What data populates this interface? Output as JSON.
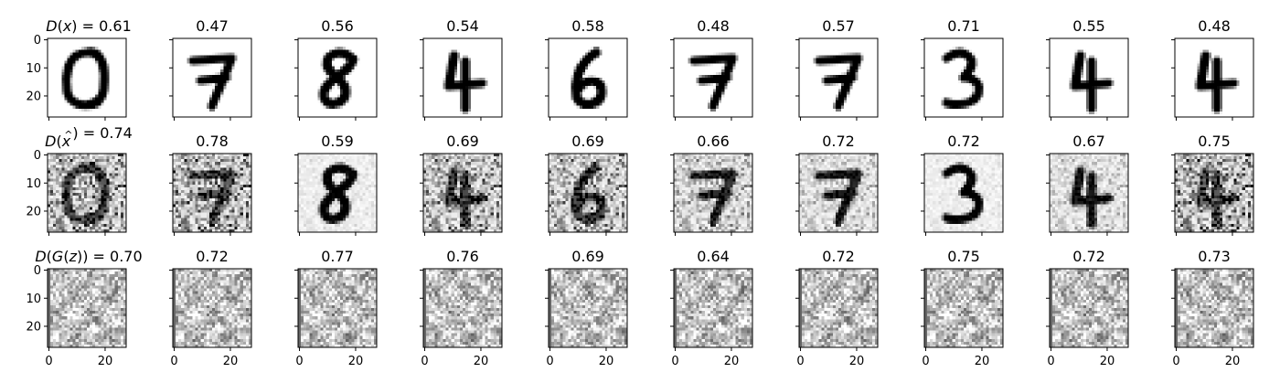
{
  "chart_data": {
    "type": "image-grid",
    "image_size": 28,
    "x_ticks": [
      0,
      20
    ],
    "y_ticks": [
      0,
      10,
      20
    ],
    "rows": [
      {
        "label": "D(x)",
        "label_parts": {
          "main": "D(x)",
          "prefix": "D(",
          "var": "x",
          "hat": "",
          "suffix": ")"
        },
        "kind": "real",
        "scores": [
          "0.61",
          "0.47",
          "0.56",
          "0.54",
          "0.58",
          "0.48",
          "0.57",
          "0.71",
          "0.55",
          "0.48"
        ],
        "digits": [
          "0",
          "7",
          "8",
          "4",
          "6",
          "7",
          "7",
          "3",
          "4",
          "4"
        ]
      },
      {
        "label": "D(x̂)",
        "label_parts": {
          "main": "D(x̂)",
          "prefix": "D(",
          "var": "x",
          "hat": "^",
          "suffix": ")"
        },
        "kind": "noisy",
        "scores": [
          "0.74",
          "0.78",
          "0.59",
          "0.69",
          "0.69",
          "0.66",
          "0.72",
          "0.72",
          "0.67",
          "0.75"
        ],
        "digits": [
          "0",
          "7",
          "8",
          "4",
          "6",
          "7",
          "7",
          "3",
          "4",
          "4"
        ]
      },
      {
        "label": "D(G(z))",
        "label_parts": {
          "main": "D(G(z))",
          "prefix": "D(G(",
          "var": "z",
          "hat": "",
          "suffix": "))"
        },
        "kind": "generated",
        "scores": [
          "0.70",
          "0.72",
          "0.77",
          "0.76",
          "0.69",
          "0.64",
          "0.72",
          "0.75",
          "0.72",
          "0.73"
        ],
        "digits": []
      }
    ],
    "noise_level": [
      0.85,
      0.92,
      0.12,
      0.8,
      0.75,
      0.55,
      0.4,
      0.1,
      0.35,
      0.95
    ],
    "colormap": "gray_r"
  }
}
